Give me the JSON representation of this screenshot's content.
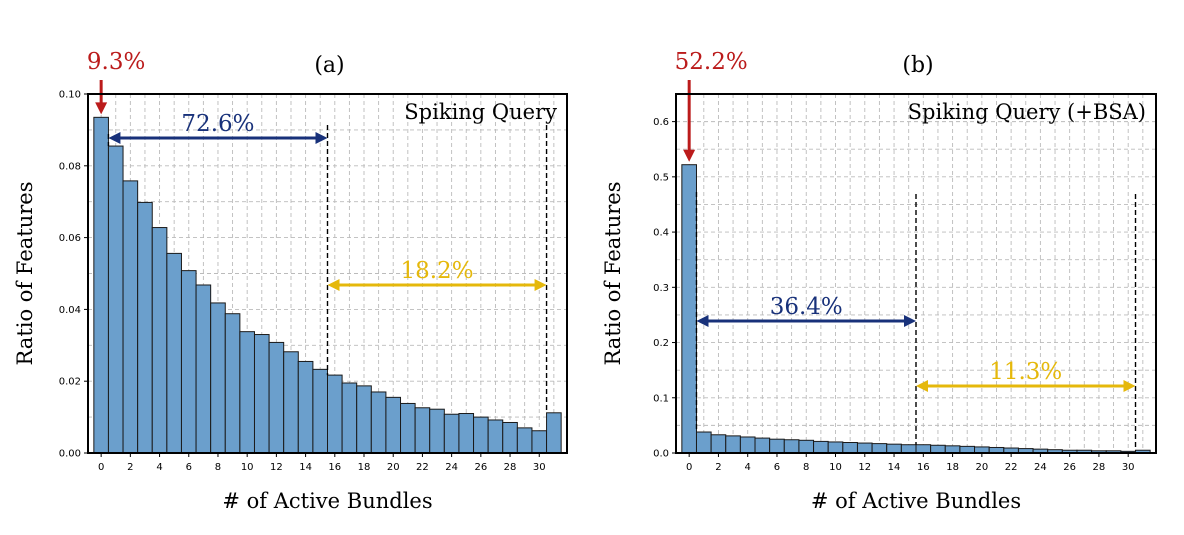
{
  "chart_data": [
    {
      "type": "bar",
      "panel_label": "(a)",
      "title": "Spiking Query",
      "xlabel": "# of Active Bundles",
      "ylabel": "Ratio of Features",
      "categories": [
        0,
        1,
        2,
        3,
        4,
        5,
        6,
        7,
        8,
        9,
        10,
        11,
        12,
        13,
        14,
        15,
        16,
        17,
        18,
        19,
        20,
        21,
        22,
        23,
        24,
        25,
        26,
        27,
        28,
        29,
        30,
        31
      ],
      "values": [
        0.0935,
        0.0855,
        0.0758,
        0.0698,
        0.0628,
        0.0556,
        0.0508,
        0.0468,
        0.0418,
        0.0388,
        0.0338,
        0.033,
        0.0308,
        0.0282,
        0.0255,
        0.0233,
        0.0217,
        0.0195,
        0.0187,
        0.017,
        0.0155,
        0.0138,
        0.0126,
        0.0122,
        0.0108,
        0.011,
        0.01,
        0.0092,
        0.0085,
        0.007,
        0.0062,
        0.0112
      ],
      "x_ticks": [
        0,
        2,
        4,
        6,
        8,
        10,
        12,
        14,
        16,
        18,
        20,
        22,
        24,
        26,
        28,
        30
      ],
      "y_ticks": [
        "0.00",
        "0.02",
        "0.04",
        "0.06",
        "0.08",
        "0.10"
      ],
      "ylim": [
        0,
        0.1
      ],
      "grid": true,
      "bar_color": "#6b9fcc",
      "annotations": [
        {
          "text": "9.3%",
          "color": "#bb1b1b",
          "type": "arrow-down",
          "target_x": 0
        },
        {
          "text": "72.6%",
          "color": "#18317a",
          "type": "double-arrow",
          "x_range": [
            1,
            16
          ]
        },
        {
          "text": "18.2%",
          "color": "#e5b80b",
          "type": "double-arrow",
          "x_range": [
            16,
            31
          ]
        }
      ],
      "dashed_lines_x": [
        1,
        16,
        31
      ]
    },
    {
      "type": "bar",
      "panel_label": "(b)",
      "title": "Spiking Query (+BSA)",
      "xlabel": "# of Active Bundles",
      "ylabel": "Ratio of Features",
      "categories": [
        0,
        1,
        2,
        3,
        4,
        5,
        6,
        7,
        8,
        9,
        10,
        11,
        12,
        13,
        14,
        15,
        16,
        17,
        18,
        19,
        20,
        21,
        22,
        23,
        24,
        25,
        26,
        27,
        28,
        29,
        30,
        31
      ],
      "values": [
        0.522,
        0.038,
        0.033,
        0.031,
        0.029,
        0.027,
        0.025,
        0.024,
        0.023,
        0.021,
        0.02,
        0.019,
        0.018,
        0.017,
        0.016,
        0.015,
        0.015,
        0.014,
        0.013,
        0.012,
        0.011,
        0.01,
        0.009,
        0.008,
        0.007,
        0.006,
        0.005,
        0.005,
        0.004,
        0.004,
        0.003,
        0.005
      ],
      "x_ticks": [
        0,
        2,
        4,
        6,
        8,
        10,
        12,
        14,
        16,
        18,
        20,
        22,
        24,
        26,
        28,
        30
      ],
      "y_ticks": [
        "0.0",
        "0.1",
        "0.2",
        "0.3",
        "0.4",
        "0.5",
        "0.6"
      ],
      "ylim": [
        0,
        0.65
      ],
      "grid": true,
      "bar_color": "#6b9fcc",
      "annotations": [
        {
          "text": "52.2%",
          "color": "#bb1b1b",
          "type": "arrow-down",
          "target_x": 0
        },
        {
          "text": "36.4%",
          "color": "#18317a",
          "type": "double-arrow",
          "x_range": [
            1,
            16
          ]
        },
        {
          "text": "11.3%",
          "color": "#e5b80b",
          "type": "double-arrow",
          "x_range": [
            16,
            31
          ]
        }
      ],
      "dashed_lines_x": [
        1,
        16,
        31
      ]
    }
  ]
}
